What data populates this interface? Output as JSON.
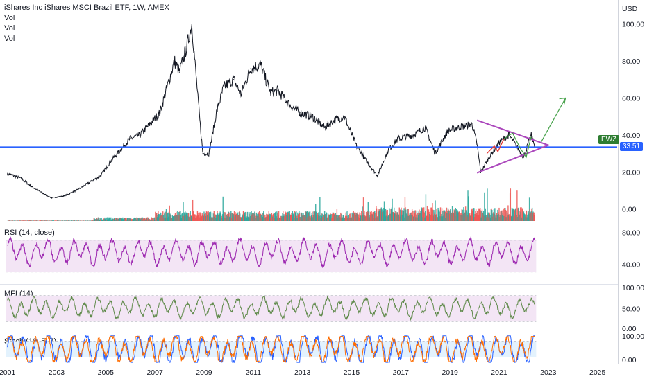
{
  "header": {
    "title": "iShares Inc iShares MSCI Brazil ETF, 1W, AMEX",
    "volume_labels": [
      "Vol",
      "Vol",
      "Vol"
    ]
  },
  "price_axis": {
    "currency": "USD",
    "ticks": [
      "100.00",
      "80.00",
      "60.00",
      "40.00",
      "20.00",
      "0.00"
    ],
    "tick_values": [
      100,
      80,
      60,
      40,
      20,
      0
    ],
    "range": [
      -8,
      113
    ]
  },
  "current_price": {
    "ticker": "EWZ",
    "value_label": "33.51",
    "value": 33.51,
    "ticker_color": "#2e7d32",
    "price_color": "#2962ff"
  },
  "time_axis": {
    "labels": [
      "2001",
      "2003",
      "2005",
      "2007",
      "2009",
      "2011",
      "2013",
      "2015",
      "2017",
      "2019",
      "2021",
      "2023",
      "2025"
    ],
    "label_years": [
      2001,
      2003,
      2005,
      2007,
      2009,
      2011,
      2013,
      2015,
      2017,
      2019,
      2021,
      2023,
      2025
    ],
    "range": [
      2000.7,
      2025.8
    ]
  },
  "panes": {
    "rsi": {
      "title": "RSI (14, close)",
      "ticks": [
        "80.00",
        "40.00"
      ],
      "tick_values": [
        80,
        40
      ],
      "band": [
        30,
        70
      ],
      "range": [
        15,
        90
      ],
      "line_color": "#9c27b0",
      "band_color": "#f3e5f5"
    },
    "mfi": {
      "title": "MFI (14)",
      "ticks": [
        "100.00",
        "50.00",
        "0.00"
      ],
      "tick_values": [
        100,
        50,
        0
      ],
      "band": [
        20,
        80
      ],
      "range": [
        -5,
        105
      ],
      "line_color": "#5f8a4a",
      "band_color": "#f3e5f5"
    },
    "stoch": {
      "title": "Stoch (10, 5, 7)",
      "ticks": [
        "100.00",
        "0.00"
      ],
      "tick_values": [
        100,
        0
      ],
      "band": [
        20,
        80
      ],
      "range": [
        -5,
        110
      ],
      "k_color": "#2962ff",
      "d_color": "#ff6d00",
      "band_color": "#e3f2fd"
    }
  },
  "colors": {
    "up_volume": "#26a69a",
    "down_volume": "#ef5350",
    "price_line": "#131722",
    "support_line": "#2962ff",
    "triangle": "#ab47bc",
    "target_arrow": "#43a047",
    "annotation_red": "#e53935"
  },
  "chart_data": {
    "type": "line",
    "title": "iShares Inc iShares MSCI Brazil ETF, 1W, AMEX",
    "xlabel": "",
    "ylabel": "USD",
    "x": [
      2001.0,
      2001.5,
      2002.0,
      2002.5,
      2002.8,
      2003.3,
      2003.8,
      2004.3,
      2004.8,
      2005.2,
      2005.6,
      2006.0,
      2006.4,
      2006.8,
      2007.2,
      2007.5,
      2007.8,
      2008.0,
      2008.3,
      2008.5,
      2008.8,
      2008.95,
      2009.2,
      2009.5,
      2009.8,
      2010.2,
      2010.5,
      2010.9,
      2011.3,
      2011.7,
      2012.0,
      2012.5,
      2012.9,
      2013.4,
      2013.9,
      2014.3,
      2014.7,
      2015.2,
      2015.6,
      2016.05,
      2016.5,
      2016.9,
      2017.5,
      2018.0,
      2018.4,
      2018.9,
      2019.3,
      2019.9,
      2020.1,
      2020.25,
      2020.6,
      2021.0,
      2021.4,
      2021.8,
      2022.0,
      2022.3,
      2022.45
    ],
    "series": [
      {
        "values": [
          19,
          17,
          12,
          8,
          6,
          7,
          10,
          14,
          18,
          26,
          32,
          38,
          40,
          46,
          52,
          66,
          80,
          74,
          88,
          100,
          52,
          30,
          30,
          52,
          66,
          70,
          62,
          76,
          78,
          63,
          64,
          56,
          52,
          50,
          44,
          48,
          50,
          34,
          26,
          18,
          32,
          38,
          40,
          44,
          30,
          42,
          44,
          46,
          35,
          20,
          28,
          36,
          40,
          32,
          28,
          40,
          34
        ]
      }
    ],
    "ylim": [
      -8,
      113
    ],
    "xlim": [
      2000.7,
      2025.8
    ],
    "grid": false,
    "legend": "none"
  }
}
